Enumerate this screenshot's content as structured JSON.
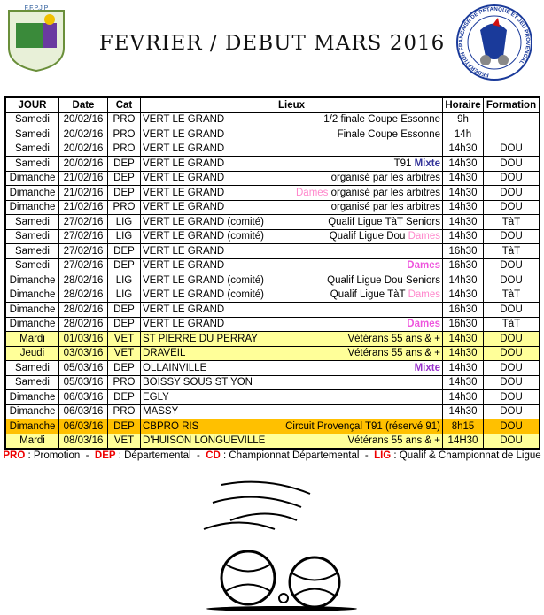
{
  "header": {
    "left_logo_text": "F.F.P.J.P",
    "right_logo_text": "FEDERATION FRANCAISE DE PETANQUE ET JEU PROVENCAL",
    "title": "FEVRIER / DEBUT MARS 2016"
  },
  "colors": {
    "veteran_row": "#ffff99",
    "circuit_row": "#ffc000",
    "dames": "#ff66cc",
    "mixte_blue": "#333399",
    "mixte_purple": "#9933cc",
    "legend_code": "#e00000"
  },
  "table": {
    "headers": [
      "JOUR",
      "Date",
      "Cat",
      "Lieux",
      "Horaire",
      "Formation"
    ],
    "rows": [
      {
        "jour": "Samedi",
        "date": "20/02/16",
        "cat": "PRO",
        "lieu": "VERT LE GRAND",
        "note": [
          {
            "t": "1/2 finale Coupe Essonne",
            "c": ""
          }
        ],
        "horaire": "9h",
        "formation": "",
        "bg": ""
      },
      {
        "jour": "Samedi",
        "date": "20/02/16",
        "cat": "PRO",
        "lieu": "VERT LE GRAND",
        "note": [
          {
            "t": "Finale Coupe Essonne",
            "c": ""
          }
        ],
        "horaire": "14h",
        "formation": "",
        "bg": ""
      },
      {
        "jour": "Samedi",
        "date": "20/02/16",
        "cat": "PRO",
        "lieu": "VERT LE GRAND",
        "note": [],
        "horaire": "14h30",
        "formation": "DOU",
        "bg": ""
      },
      {
        "jour": "Samedi",
        "date": "20/02/16",
        "cat": "DEP",
        "lieu": "VERT LE GRAND",
        "note": [
          {
            "t": "T91 ",
            "c": ""
          },
          {
            "t": "Mixte",
            "c": "#333399",
            "b": true
          }
        ],
        "horaire": "14h30",
        "formation": "DOU",
        "bg": ""
      },
      {
        "jour": "Dimanche",
        "date": "21/02/16",
        "cat": "DEP",
        "lieu": "VERT LE GRAND",
        "note": [
          {
            "t": "organisé par les arbitres",
            "c": ""
          }
        ],
        "horaire": "14h30",
        "formation": "DOU",
        "bg": ""
      },
      {
        "jour": "Dimanche",
        "date": "21/02/16",
        "cat": "DEP",
        "lieu": "VERT LE GRAND",
        "note": [
          {
            "t": "Dames",
            "c": "#ff88cc"
          },
          {
            "t": " organisé par les arbitres",
            "c": ""
          }
        ],
        "horaire": "14h30",
        "formation": "DOU",
        "bg": ""
      },
      {
        "jour": "Dimanche",
        "date": "21/02/16",
        "cat": "PRO",
        "lieu": "VERT LE GRAND",
        "note": [
          {
            "t": "organisé par les arbitres",
            "c": ""
          }
        ],
        "horaire": "14h30",
        "formation": "DOU",
        "bg": ""
      },
      {
        "jour": "Samedi",
        "date": "27/02/16",
        "cat": "LIG",
        "lieu": "VERT LE GRAND (comité)",
        "note": [
          {
            "t": "Qualif Ligue TàT Seniors",
            "c": ""
          }
        ],
        "horaire": "14h30",
        "formation": "TàT",
        "bg": ""
      },
      {
        "jour": "Samedi",
        "date": "27/02/16",
        "cat": "LIG",
        "lieu": "VERT LE GRAND (comité)",
        "note": [
          {
            "t": "Qualif Ligue Dou ",
            "c": ""
          },
          {
            "t": "Dames",
            "c": "#ff88cc"
          }
        ],
        "horaire": "14h30",
        "formation": "DOU",
        "bg": ""
      },
      {
        "jour": "Samedi",
        "date": "27/02/16",
        "cat": "DEP",
        "lieu": "VERT LE GRAND",
        "note": [],
        "horaire": "16h30",
        "formation": "TàT",
        "bg": ""
      },
      {
        "jour": "Samedi",
        "date": "27/02/16",
        "cat": "DEP",
        "lieu": "VERT LE GRAND",
        "note": [
          {
            "t": "Dames",
            "c": "#ee55dd",
            "b": true
          }
        ],
        "horaire": "16h30",
        "formation": "DOU",
        "bg": ""
      },
      {
        "jour": "Dimanche",
        "date": "28/02/16",
        "cat": "LIG",
        "lieu": "VERT LE GRAND (comité)",
        "note": [
          {
            "t": "Qualif Ligue Dou Seniors",
            "c": ""
          }
        ],
        "horaire": "14h30",
        "formation": "DOU",
        "bg": ""
      },
      {
        "jour": "Dimanche",
        "date": "28/02/16",
        "cat": "LIG",
        "lieu": "VERT LE GRAND (comité)",
        "note": [
          {
            "t": "Qualif Ligue TàT ",
            "c": ""
          },
          {
            "t": "Dames",
            "c": "#ff88cc"
          }
        ],
        "horaire": "14h30",
        "formation": "TàT",
        "bg": ""
      },
      {
        "jour": "Dimanche",
        "date": "28/02/16",
        "cat": "DEP",
        "lieu": "VERT LE GRAND",
        "note": [],
        "horaire": "16h30",
        "formation": "DOU",
        "bg": ""
      },
      {
        "jour": "Dimanche",
        "date": "28/02/16",
        "cat": "DEP",
        "lieu": "VERT LE GRAND",
        "note": [
          {
            "t": "Dames",
            "c": "#ee55dd",
            "b": true
          }
        ],
        "horaire": "16h30",
        "formation": "TàT",
        "bg": ""
      },
      {
        "jour": "Mardi",
        "date": "01/03/16",
        "cat": "VET",
        "lieu": "ST PIERRE DU PERRAY",
        "note": [
          {
            "t": "Vétérans 55 ans & +",
            "c": ""
          }
        ],
        "horaire": "14h30",
        "formation": "DOU",
        "bg": "#ffff99"
      },
      {
        "jour": "Jeudi",
        "date": "03/03/16",
        "cat": "VET",
        "lieu": "DRAVEIL",
        "note": [
          {
            "t": "Vétérans 55 ans & +",
            "c": ""
          }
        ],
        "horaire": "14h30",
        "formation": "DOU",
        "bg": "#ffff99"
      },
      {
        "jour": "Samedi",
        "date": "05/03/16",
        "cat": "DEP",
        "lieu": "OLLAINVILLE",
        "note": [
          {
            "t": "Mixte",
            "c": "#9933cc",
            "b": true
          }
        ],
        "horaire": "14h30",
        "formation": "DOU",
        "bg": ""
      },
      {
        "jour": "Samedi",
        "date": "05/03/16",
        "cat": "PRO",
        "lieu": "BOISSY SOUS ST YON",
        "note": [],
        "horaire": "14h30",
        "formation": "DOU",
        "bg": ""
      },
      {
        "jour": "Dimanche",
        "date": "06/03/16",
        "cat": "DEP",
        "lieu": "EGLY",
        "note": [],
        "horaire": "14h30",
        "formation": "DOU",
        "bg": ""
      },
      {
        "jour": "Dimanche",
        "date": "06/03/16",
        "cat": "PRO",
        "lieu": "MASSY",
        "note": [],
        "horaire": "14h30",
        "formation": "DOU",
        "bg": ""
      },
      {
        "jour": "Dimanche",
        "date": "06/03/16",
        "cat": "DEP",
        "lieu": "CBPRO RIS",
        "note": [
          {
            "t": "Circuit Provençal T91 (réservé 91)",
            "c": ""
          }
        ],
        "horaire": "8h15",
        "formation": "DOU",
        "bg": "#ffc000"
      },
      {
        "jour": "Mardi",
        "date": "08/03/16",
        "cat": "VET",
        "lieu": "D'HUISON LONGUEVILLE",
        "note": [
          {
            "t": "Vétérans 55 ans & +",
            "c": ""
          }
        ],
        "horaire": "14H30",
        "formation": "DOU",
        "bg": "#ffff99"
      }
    ]
  },
  "legend": [
    {
      "code": "PRO",
      "desc": " : Promotion"
    },
    {
      "code": "DEP",
      "desc": " : Départemental"
    },
    {
      "code": "CD",
      "desc": " : Championnat Départemental"
    },
    {
      "code": "LIG",
      "desc": " : Qualif & Championnat de Ligue"
    }
  ],
  "legend_separator": "  -  "
}
